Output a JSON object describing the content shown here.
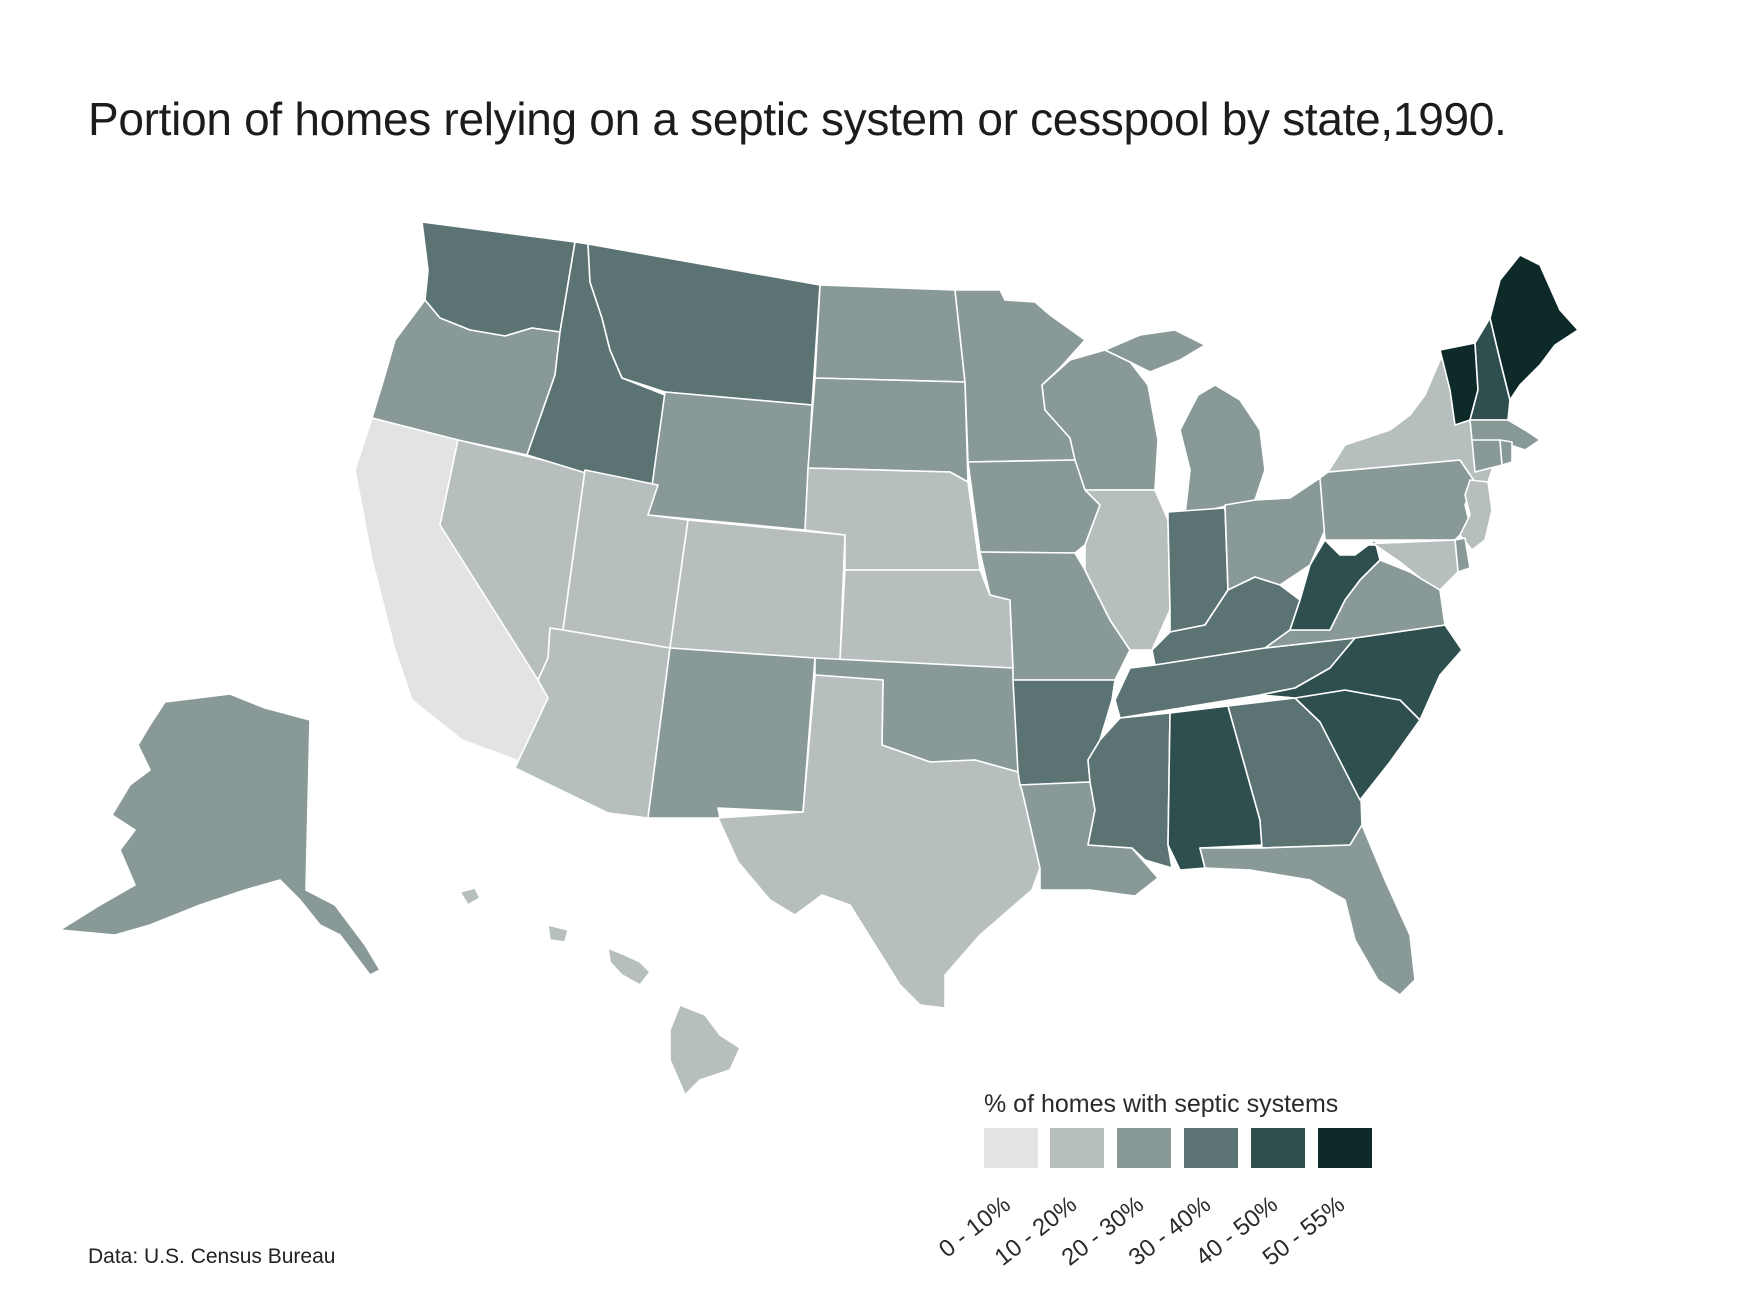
{
  "title": "Portion of homes relying on a septic system or cesspool by state,1990.",
  "source": "Data: U.S. Census Bureau",
  "legend": {
    "title": "% of homes with septic systems",
    "bins": [
      {
        "label": "0 - 10%",
        "color": "#e3e3e3"
      },
      {
        "label": "10 - 20%",
        "color": "#b7bfbe"
      },
      {
        "label": "20 - 30%",
        "color": "#889998"
      },
      {
        "label": "30 - 40%",
        "color": "#5b7373"
      },
      {
        "label": "40 - 50%",
        "color": "#2e4f4e"
      },
      {
        "label": "50 - 55%",
        "color": "#0d2a29"
      }
    ]
  },
  "state_bins": {
    "WA": 3,
    "OR": 2,
    "CA": 0,
    "ID": 3,
    "NV": 1,
    "MT": 3,
    "WY": 2,
    "UT": 1,
    "AZ": 1,
    "CO": 1,
    "NM": 2,
    "ND": 2,
    "SD": 2,
    "NE": 1,
    "KS": 1,
    "OK": 2,
    "TX": 1,
    "MN": 2,
    "IA": 2,
    "MO": 2,
    "AR": 3,
    "LA": 2,
    "WI": 2,
    "IL": 1,
    "MI": 2,
    "IN": 3,
    "OH": 2,
    "KY": 3,
    "TN": 3,
    "MS": 3,
    "AL": 4,
    "GA": 3,
    "FL": 2,
    "SC": 4,
    "NC": 4,
    "VA": 2,
    "WV": 4,
    "PA": 2,
    "NY": 1,
    "NJ": 1,
    "DE": 2,
    "MD": 1,
    "VT": 5,
    "NH": 4,
    "ME": 5,
    "MA": 2,
    "CT": 2,
    "RI": 2,
    "AK": 2,
    "HI": 1
  }
}
